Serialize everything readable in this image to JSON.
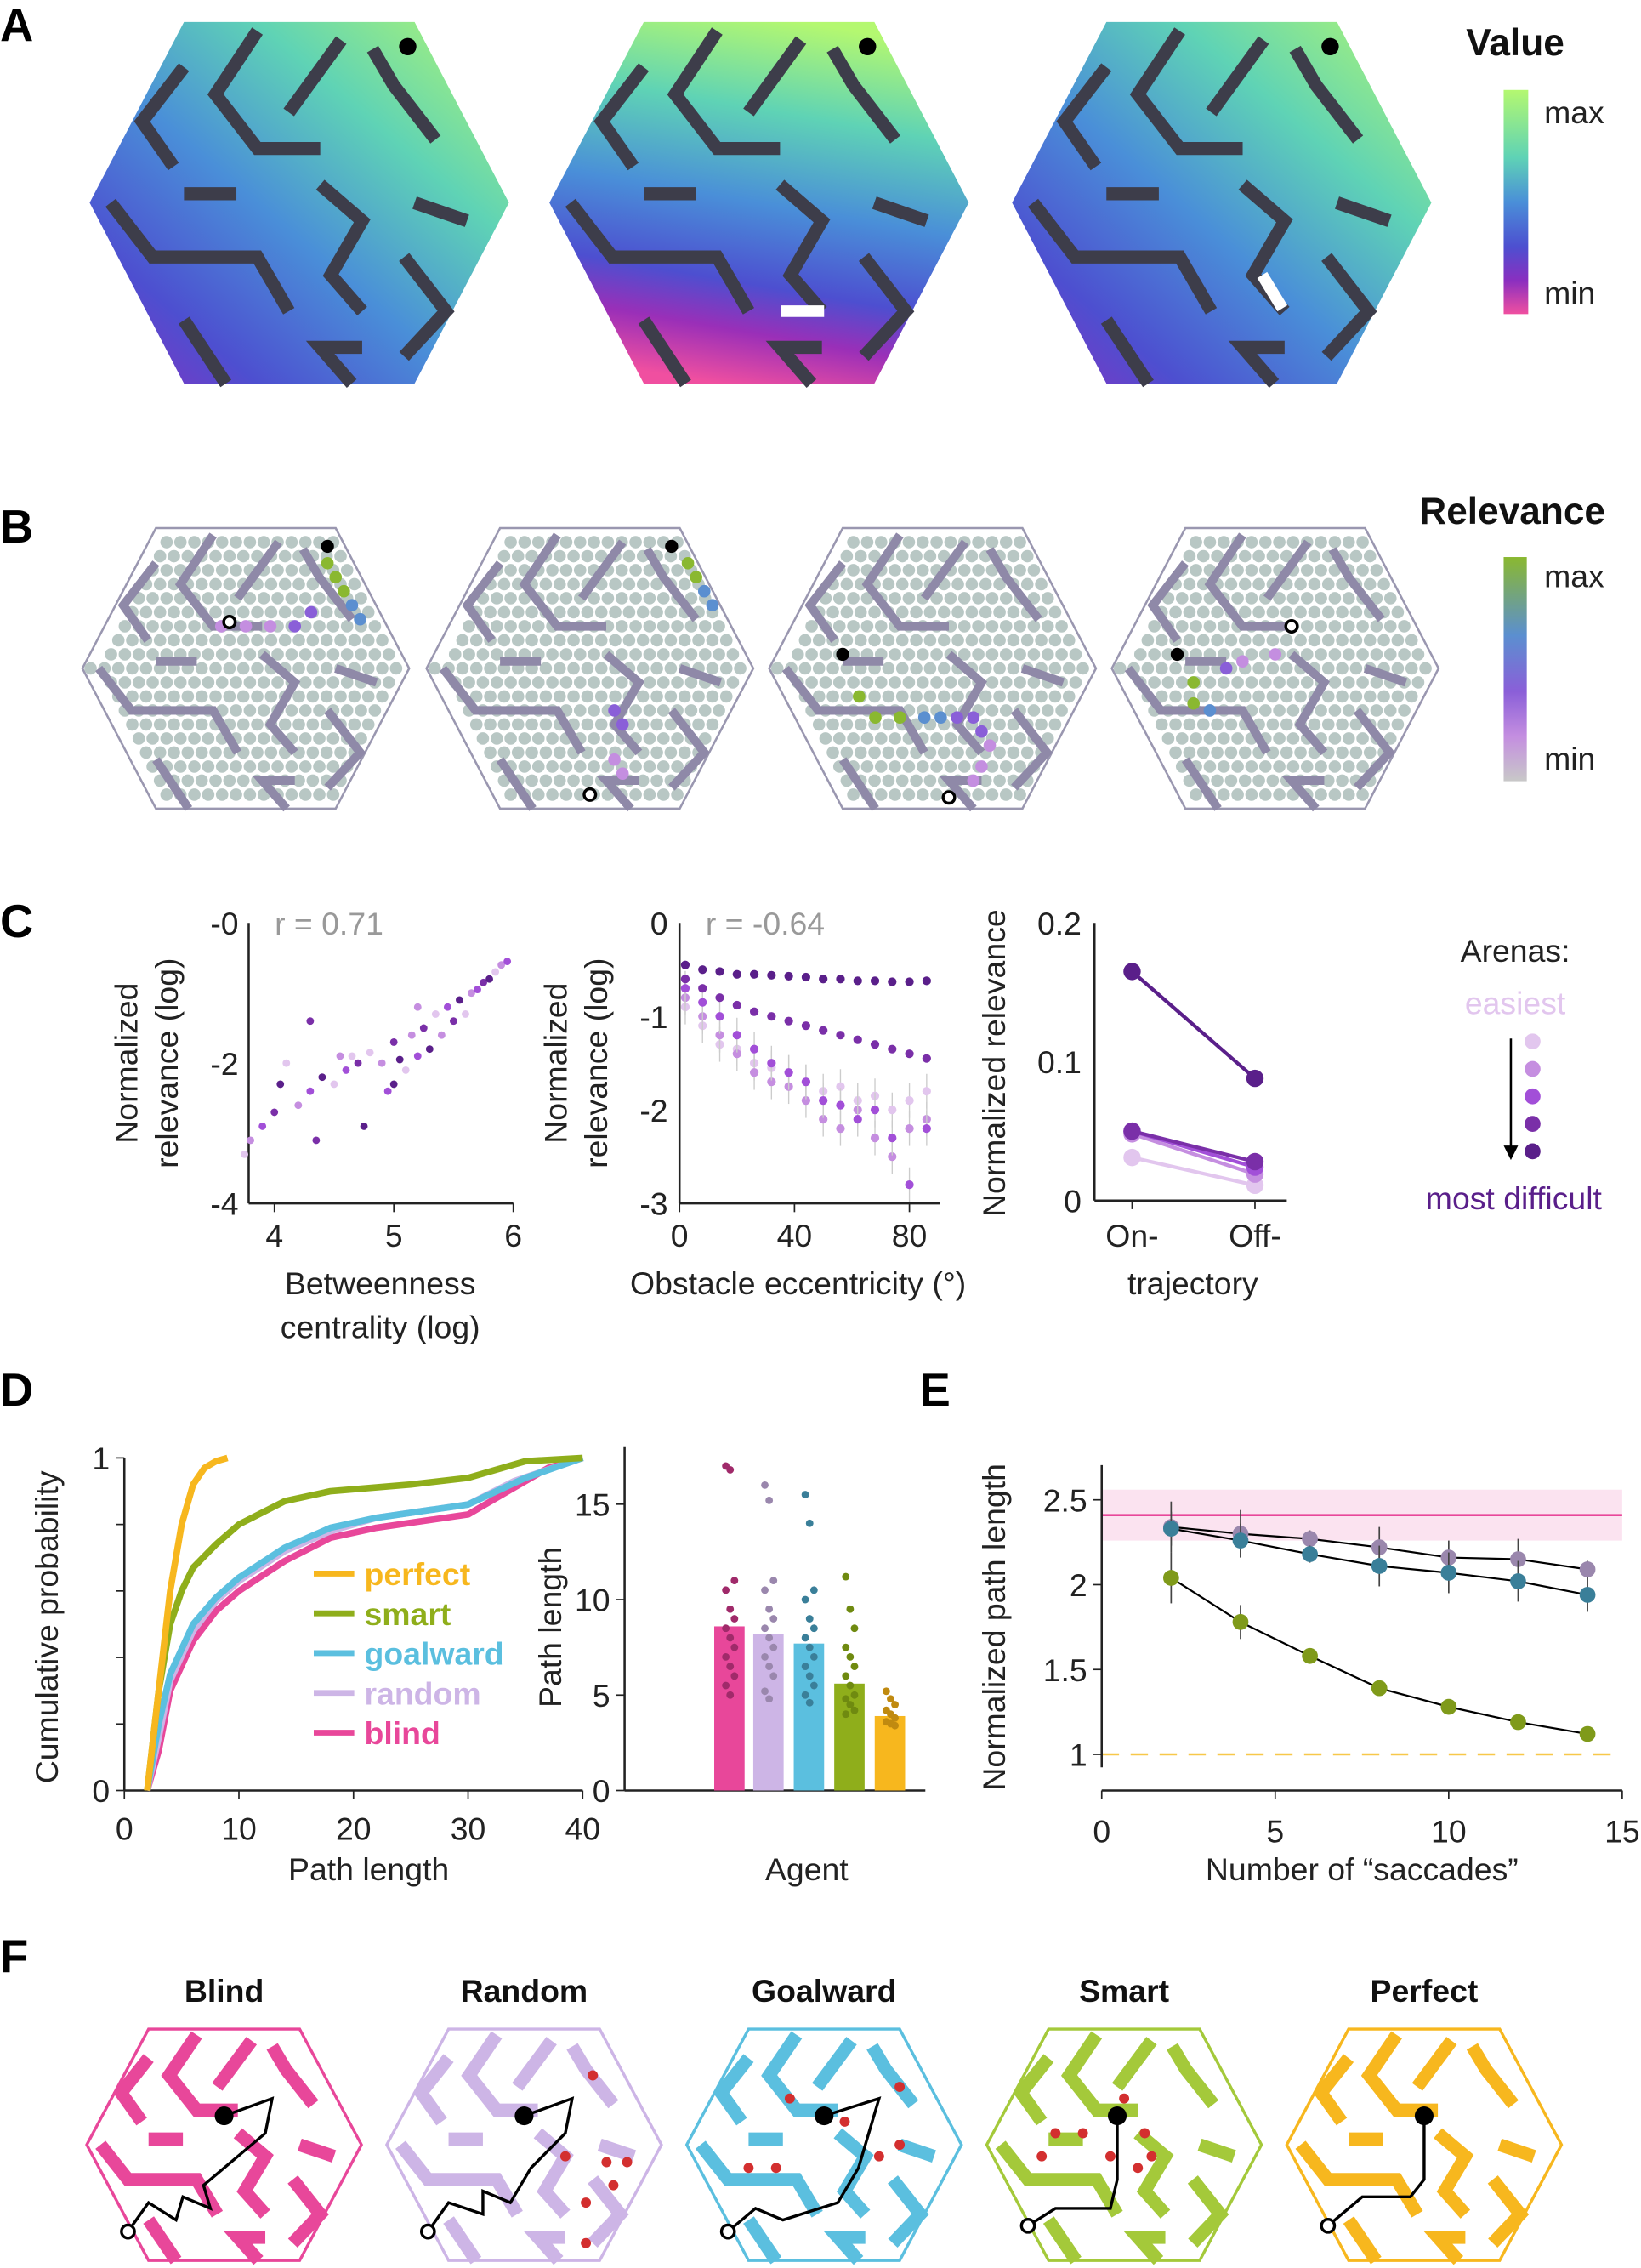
{
  "panels": {
    "A": "A",
    "B": "B",
    "C": "C",
    "D": "D",
    "E": "E",
    "F": "F"
  },
  "panelA": {
    "colorbar_title": "Value",
    "max": "max",
    "min": "min",
    "colors": [
      "#a8f57a",
      "#5fd3b5",
      "#4a8fd8",
      "#4d4fd0",
      "#8a2fc0",
      "#e8479a"
    ]
  },
  "panelB": {
    "colorbar_title": "Relevance",
    "max": "max",
    "min": "min",
    "colors": [
      "#8ab830",
      "#5b8fd0",
      "#8a5fd8",
      "#c48ee0",
      "#c8c8c8"
    ],
    "cell_color": "#b8c7c4",
    "wall_color": "#8f89a8"
  },
  "panelF": {
    "titles": [
      "Blind",
      "Random",
      "Goalward",
      "Smart",
      "Perfect"
    ],
    "colors": [
      "#e8479a",
      "#cdb5e6",
      "#5bbfdf",
      "#a4c93a",
      "#f7b71e"
    ],
    "marker_color": "#d32f2f"
  },
  "chart_data": [
    {
      "id": "C1",
      "type": "scatter",
      "xlabel": [
        "Betweenness",
        "centrality (log)"
      ],
      "ylabel": [
        "Normalized",
        "relevance (log)"
      ],
      "annotation": "r = 0.71",
      "xlim": [
        3.7,
        6
      ],
      "ylim": [
        -4,
        0
      ],
      "xticks": [
        "4",
        "5",
        "6"
      ],
      "yticks": [
        "-0",
        "-2",
        "-4"
      ],
      "points": [
        [
          3.75,
          -3.3
        ],
        [
          3.8,
          -3.1
        ],
        [
          3.9,
          -2.9
        ],
        [
          4.0,
          -2.7
        ],
        [
          4.05,
          -2.3
        ],
        [
          4.1,
          -2.0
        ],
        [
          4.2,
          -2.6
        ],
        [
          4.3,
          -2.4
        ],
        [
          4.35,
          -3.1
        ],
        [
          4.4,
          -2.2
        ],
        [
          4.5,
          -2.3
        ],
        [
          4.55,
          -1.9
        ],
        [
          4.6,
          -2.1
        ],
        [
          4.7,
          -2.0
        ],
        [
          4.75,
          -2.9
        ],
        [
          4.8,
          -1.85
        ],
        [
          4.9,
          -2.0
        ],
        [
          4.95,
          -2.4
        ],
        [
          5.0,
          -1.7
        ],
        [
          5.05,
          -1.95
        ],
        [
          5.1,
          -2.1
        ],
        [
          5.15,
          -1.6
        ],
        [
          5.2,
          -1.9
        ],
        [
          5.25,
          -1.5
        ],
        [
          5.3,
          -1.8
        ],
        [
          5.35,
          -1.3
        ],
        [
          5.4,
          -1.6
        ],
        [
          5.45,
          -1.2
        ],
        [
          5.5,
          -1.4
        ],
        [
          5.55,
          -1.1
        ],
        [
          5.6,
          -1.3
        ],
        [
          5.65,
          -1.0
        ],
        [
          5.7,
          -0.95
        ],
        [
          5.75,
          -0.85
        ],
        [
          5.8,
          -0.8
        ],
        [
          5.85,
          -0.7
        ],
        [
          5.9,
          -0.6
        ],
        [
          5.95,
          -0.55
        ],
        [
          4.3,
          -1.4
        ],
        [
          5.0,
          -2.3
        ],
        [
          4.65,
          -1.9
        ],
        [
          5.2,
          -1.2
        ]
      ],
      "arena_colors": [
        "#e2c6ee",
        "#c58ee0",
        "#a24fd8",
        "#7a2fa8",
        "#5a1f8a"
      ]
    },
    {
      "id": "C2",
      "type": "scatter",
      "xlabel": "Obstacle eccentricity (°)",
      "ylabel": [
        "Normalized",
        "relevance (log)"
      ],
      "annotation": "r = -0.64",
      "xlim": [
        0,
        90
      ],
      "ylim": [
        -3,
        0
      ],
      "xticks": [
        "0",
        "40",
        "80"
      ],
      "yticks": [
        "0",
        "-1",
        "-2",
        "-3"
      ],
      "x": [
        2,
        8,
        14,
        20,
        26,
        32,
        38,
        44,
        50,
        56,
        62,
        68,
        74,
        80,
        86
      ],
      "series": [
        [
          -0.9,
          -1.1,
          -1.3,
          -1.35,
          -1.5,
          -1.55,
          -1.6,
          -1.7,
          -1.8,
          -1.75,
          -1.9,
          -1.85,
          -2.0,
          -1.9,
          -1.8
        ],
        [
          -0.8,
          -1.0,
          -1.2,
          -1.4,
          -1.6,
          -1.7,
          -1.75,
          -1.9,
          -2.1,
          -2.2,
          -2.0,
          -2.3,
          -2.5,
          -2.2,
          -2.1
        ],
        [
          -0.7,
          -0.85,
          -1.0,
          -1.2,
          -1.35,
          -1.5,
          -1.6,
          -1.7,
          -1.9,
          -1.95,
          -2.1,
          -2.0,
          -2.3,
          -2.8,
          -2.2
        ],
        [
          -0.6,
          -0.7,
          -0.8,
          -0.88,
          -0.95,
          -1.0,
          -1.05,
          -1.1,
          -1.15,
          -1.2,
          -1.25,
          -1.3,
          -1.35,
          -1.4,
          -1.45
        ],
        [
          -0.45,
          -0.5,
          -0.52,
          -0.55,
          -0.55,
          -0.56,
          -0.57,
          -0.58,
          -0.6,
          -0.6,
          -0.62,
          -0.62,
          -0.63,
          -0.63,
          -0.62
        ]
      ]
    },
    {
      "id": "C3",
      "type": "line",
      "ylabel": "Normalized relevance",
      "xlabel": "trajectory",
      "categories": [
        "On-",
        "Off-"
      ],
      "ylim": [
        0,
        0.2
      ],
      "yticks": [
        "0",
        "0.1",
        "0.2"
      ],
      "series": [
        [
          0.031,
          0.011
        ],
        [
          0.048,
          0.019
        ],
        [
          0.05,
          0.024
        ],
        [
          0.05,
          0.028
        ],
        [
          0.165,
          0.088
        ]
      ],
      "legend": {
        "title": "Arenas:",
        "top": "easiest",
        "bottom": "most difficult",
        "placement": "right"
      }
    },
    {
      "id": "D1",
      "type": "line",
      "xlabel": "Path length",
      "ylabel": "Cumulative probability",
      "xlim": [
        0,
        40
      ],
      "ylim": [
        0,
        1
      ],
      "xticks": [
        "0",
        "10",
        "20",
        "30",
        "40"
      ],
      "yticks": [
        "0",
        "1"
      ],
      "legend_placement": "center-right",
      "series": [
        {
          "name": "blind",
          "color": "#e8479a",
          "points": [
            [
              2,
              0
            ],
            [
              3,
              0.12
            ],
            [
              4,
              0.3
            ],
            [
              6,
              0.45
            ],
            [
              8,
              0.54
            ],
            [
              10,
              0.6
            ],
            [
              14,
              0.69
            ],
            [
              18,
              0.76
            ],
            [
              22,
              0.79
            ],
            [
              30,
              0.83
            ],
            [
              34,
              0.91
            ],
            [
              37,
              0.97
            ],
            [
              40,
              1
            ]
          ]
        },
        {
          "name": "random",
          "color": "#cdb5e6",
          "points": [
            [
              2,
              0
            ],
            [
              3,
              0.16
            ],
            [
              4,
              0.33
            ],
            [
              6,
              0.48
            ],
            [
              8,
              0.57
            ],
            [
              10,
              0.63
            ],
            [
              14,
              0.72
            ],
            [
              18,
              0.78
            ],
            [
              22,
              0.82
            ],
            [
              30,
              0.86
            ],
            [
              34,
              0.93
            ],
            [
              40,
              1
            ]
          ]
        },
        {
          "name": "goalward",
          "color": "#5bbfdf",
          "points": [
            [
              2,
              0
            ],
            [
              3,
              0.2
            ],
            [
              4,
              0.35
            ],
            [
              6,
              0.5
            ],
            [
              8,
              0.58
            ],
            [
              10,
              0.64
            ],
            [
              14,
              0.73
            ],
            [
              18,
              0.79
            ],
            [
              22,
              0.82
            ],
            [
              30,
              0.86
            ],
            [
              35,
              0.94
            ],
            [
              40,
              1
            ]
          ]
        },
        {
          "name": "smart",
          "color": "#8fae1b",
          "points": [
            [
              2,
              0
            ],
            [
              3,
              0.3
            ],
            [
              4,
              0.5
            ],
            [
              5,
              0.6
            ],
            [
              6,
              0.67
            ],
            [
              8,
              0.74
            ],
            [
              10,
              0.8
            ],
            [
              14,
              0.87
            ],
            [
              18,
              0.9
            ],
            [
              25,
              0.92
            ],
            [
              30,
              0.94
            ],
            [
              35,
              0.99
            ],
            [
              40,
              1
            ]
          ]
        },
        {
          "name": "perfect",
          "color": "#f7b71e",
          "points": [
            [
              2,
              0
            ],
            [
              3,
              0.3
            ],
            [
              4,
              0.6
            ],
            [
              5,
              0.8
            ],
            [
              6,
              0.92
            ],
            [
              7,
              0.97
            ],
            [
              8,
              0.99
            ],
            [
              9,
              1
            ]
          ]
        }
      ],
      "legend_order": [
        "perfect",
        "smart",
        "goalward",
        "random",
        "blind"
      ]
    },
    {
      "id": "D2",
      "type": "bar",
      "xlabel": "Agent",
      "ylabel": "Path length",
      "ylim": [
        0,
        18
      ],
      "yticks": [
        "0",
        "5",
        "10",
        "15"
      ],
      "categories": [
        "blind",
        "random",
        "goalward",
        "smart",
        "perfect"
      ],
      "values": [
        8.6,
        8.2,
        7.7,
        5.6,
        3.9
      ],
      "colors": [
        "#e8479a",
        "#cdb5e6",
        "#5bbfdf",
        "#8fae1b",
        "#f7b71e"
      ],
      "dot_colors": [
        "#a02a6a",
        "#9a87ad",
        "#3a7f99",
        "#6f8a10",
        "#c08a10"
      ],
      "dots": [
        [
          17,
          16.8,
          11,
          10.5,
          9.5,
          9,
          8.5,
          8,
          7.5,
          7,
          6.5,
          6,
          5.5,
          5
        ],
        [
          16,
          15.2,
          11,
          10.5,
          9.5,
          9,
          8.5,
          8,
          7.5,
          7,
          6.5,
          6,
          5.2,
          4.8
        ],
        [
          15.5,
          14,
          10.5,
          10,
          9,
          8.5,
          8,
          7.5,
          7,
          6.5,
          6,
          5.5,
          5,
          4.6
        ],
        [
          11.2,
          9.5,
          8.5,
          7.5,
          7,
          6.5,
          6,
          5.5,
          5,
          4.8,
          4.5,
          4.2,
          4
        ],
        [
          5.2,
          4.8,
          4.5,
          4.2,
          4,
          3.8,
          3.6,
          3.5,
          3.4
        ]
      ]
    },
    {
      "id": "E",
      "type": "line",
      "xlabel": "Number of “saccades”",
      "ylabel": "Normalized path length",
      "xlim": [
        0,
        15
      ],
      "ylim": [
        0.8,
        2.7
      ],
      "xticks": [
        "0",
        "5",
        "10",
        "15"
      ],
      "yticks": [
        "1",
        "1.5",
        "2",
        "2.5"
      ],
      "x": [
        2,
        4,
        6,
        8,
        10,
        12,
        14
      ],
      "reference_blind": {
        "value": 2.41,
        "band": [
          2.26,
          2.56
        ],
        "color": "#e8479a"
      },
      "reference_perfect": {
        "value": 1,
        "color": "#f7c84a"
      },
      "series": [
        {
          "agent": "random",
          "color": "#9a87ad",
          "values": [
            2.34,
            2.3,
            2.27,
            2.22,
            2.16,
            2.15,
            2.09
          ],
          "err": [
            0.15,
            0.14,
            0.05,
            0.12,
            0.1,
            0.12,
            0.05
          ]
        },
        {
          "agent": "goalward",
          "color": "#3a7f99",
          "values": [
            2.33,
            2.26,
            2.18,
            2.11,
            2.07,
            2.02,
            1.94
          ],
          "err": [
            0.1,
            0.1,
            0.05,
            0.12,
            0.12,
            0.12,
            0.1
          ]
        },
        {
          "agent": "smart",
          "color": "#7f9a1a",
          "values": [
            2.04,
            1.78,
            1.58,
            1.39,
            1.28,
            1.19,
            1.12
          ],
          "err": [
            0.15,
            0.1,
            0.04,
            0.03,
            0.03,
            0.03,
            0.03
          ]
        }
      ]
    }
  ]
}
